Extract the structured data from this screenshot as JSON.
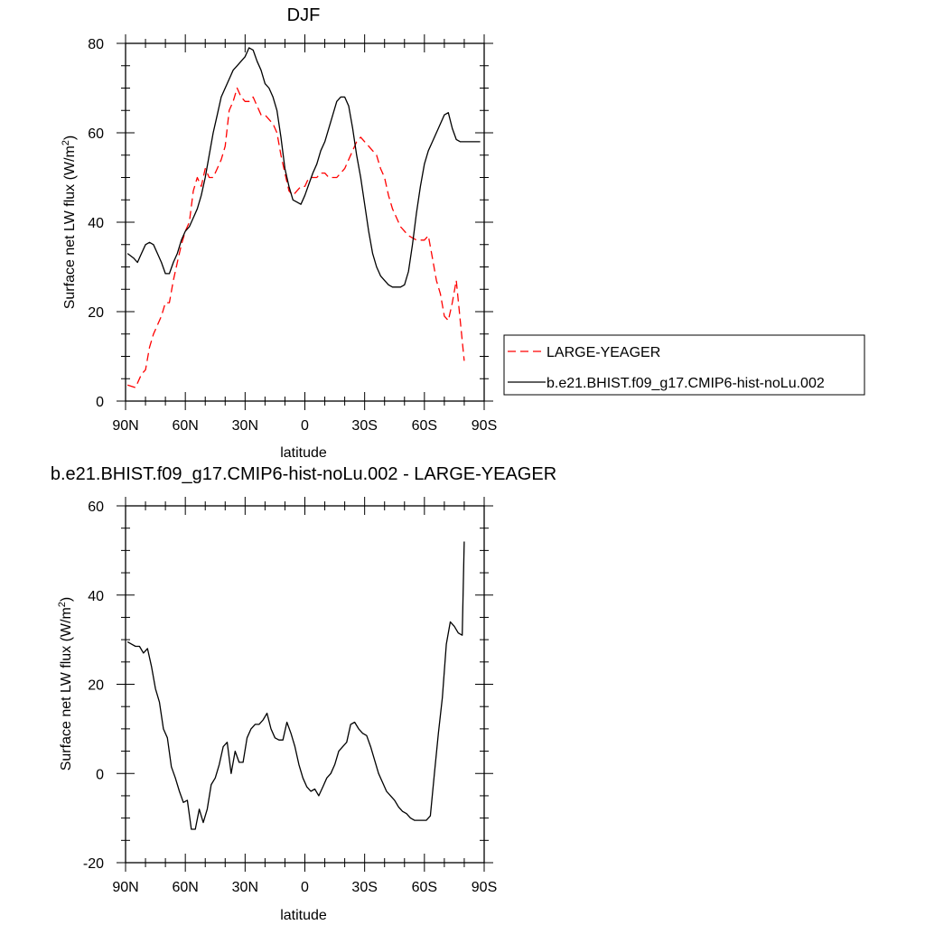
{
  "chart_data": [
    {
      "type": "line",
      "title": "DJF",
      "xlabel": "latitude",
      "ylabel": "Surface net LW flux (W/m",
      "ylabel_sup": "2",
      "ylabel_close": ")",
      "xlim": [
        90,
        -90
      ],
      "ylim": [
        0,
        80
      ],
      "xticks": [
        {
          "value": 90,
          "label": "90N"
        },
        {
          "value": 60,
          "label": "60N"
        },
        {
          "value": 30,
          "label": "30N"
        },
        {
          "value": 0,
          "label": "0"
        },
        {
          "value": -30,
          "label": "30S"
        },
        {
          "value": -60,
          "label": "60S"
        },
        {
          "value": -90,
          "label": "90S"
        }
      ],
      "yticks": [
        {
          "value": 0,
          "label": "0"
        },
        {
          "value": 20,
          "label": "20"
        },
        {
          "value": 40,
          "label": "40"
        },
        {
          "value": 60,
          "label": "60"
        },
        {
          "value": 80,
          "label": "80"
        }
      ],
      "legend": "right",
      "series": [
        {
          "name": "LARGE-YEAGER",
          "color": "#ff0000",
          "dash": "dashed",
          "x": [
            89,
            85,
            82,
            80,
            78,
            76,
            74,
            72,
            70,
            68,
            66,
            64,
            62,
            60,
            58,
            56,
            54,
            52,
            50,
            48,
            46,
            44,
            42,
            40,
            38,
            36,
            34,
            32,
            30,
            28,
            26,
            24,
            22,
            20,
            18,
            16,
            14,
            12,
            10,
            8,
            6,
            4,
            2,
            0,
            -2,
            -4,
            -6,
            -8,
            -10,
            -12,
            -14,
            -16,
            -18,
            -20,
            -22,
            -24,
            -26,
            -28,
            -30,
            -32,
            -34,
            -36,
            -38,
            -40,
            -42,
            -44,
            -46,
            -48,
            -50,
            -52,
            -54,
            -56,
            -58,
            -60,
            -62,
            -64,
            -66,
            -68,
            -70,
            -72,
            -74,
            -76,
            -78,
            -80
          ],
          "y": [
            3.6,
            3,
            6,
            7,
            12,
            15,
            17,
            19,
            22,
            22,
            27,
            31,
            35,
            38,
            40,
            47,
            50,
            48,
            52,
            50,
            50,
            52,
            54,
            57,
            65,
            67,
            70,
            68,
            67,
            67,
            68,
            66,
            64,
            64,
            63,
            62,
            60,
            55,
            51,
            47,
            46,
            47,
            48,
            48,
            50,
            50,
            50,
            51,
            51,
            50,
            50,
            50,
            51,
            52,
            54,
            56,
            58,
            59,
            58,
            57,
            56,
            55,
            52,
            50,
            46,
            43,
            41,
            39,
            38,
            37,
            36.5,
            36,
            36,
            36,
            37,
            32,
            27,
            24,
            19,
            18,
            22,
            27,
            18,
            9
          ]
        },
        {
          "name": "b.e21.BHIST.f09_g17.CMIP6-hist-noLu.002",
          "color": "#000000",
          "dash": "solid",
          "x": [
            89,
            86,
            84,
            82,
            80,
            78,
            76,
            74,
            72,
            70,
            68,
            66,
            64,
            62,
            60,
            58,
            56,
            54,
            52,
            50,
            48,
            46,
            44,
            42,
            40,
            38,
            36,
            34,
            32,
            30,
            28,
            26,
            24,
            22,
            20,
            18,
            16,
            14,
            12,
            10,
            8,
            6,
            4,
            2,
            0,
            -2,
            -4,
            -6,
            -8,
            -10,
            -12,
            -14,
            -16,
            -18,
            -20,
            -22,
            -24,
            -26,
            -28,
            -30,
            -32,
            -34,
            -36,
            -38,
            -40,
            -42,
            -44,
            -46,
            -48,
            -50,
            -52,
            -54,
            -56,
            -58,
            -60,
            -62,
            -64,
            -66,
            -68,
            -70,
            -72,
            -74,
            -76,
            -78,
            -80,
            -82,
            -84,
            -86,
            -88
          ],
          "y": [
            33,
            32,
            31,
            33,
            35,
            35.5,
            35,
            33,
            31,
            28.5,
            28.5,
            31,
            33,
            36,
            38,
            39,
            41,
            43,
            46,
            50,
            55,
            60,
            64,
            68,
            70,
            72,
            74,
            75,
            76,
            77,
            79,
            78.5,
            76,
            74,
            71,
            70,
            68,
            65,
            59,
            52,
            48,
            45,
            44.5,
            44,
            46,
            48.5,
            51,
            53,
            56,
            58,
            61,
            64,
            67,
            68,
            68,
            66,
            61,
            55,
            50,
            44,
            38,
            33,
            30,
            28,
            27,
            26,
            25.5,
            25.5,
            25.5,
            26,
            29,
            35,
            42,
            48,
            53,
            56,
            58,
            60,
            62,
            64,
            64.5,
            61,
            58.5,
            58,
            58,
            58,
            58,
            58,
            58
          ]
        }
      ]
    },
    {
      "type": "line",
      "title": "b.e21.BHIST.f09_g17.CMIP6-hist-noLu.002 - LARGE-YEAGER",
      "xlabel": "latitude",
      "ylabel": "Surface net LW flux (W/m",
      "ylabel_sup": "2",
      "ylabel_close": ")",
      "xlim": [
        90,
        -90
      ],
      "ylim": [
        -20,
        60
      ],
      "xticks": [
        {
          "value": 90,
          "label": "90N"
        },
        {
          "value": 60,
          "label": "60N"
        },
        {
          "value": 30,
          "label": "30N"
        },
        {
          "value": 0,
          "label": "0"
        },
        {
          "value": -30,
          "label": "30S"
        },
        {
          "value": -60,
          "label": "60S"
        },
        {
          "value": -90,
          "label": "90S"
        }
      ],
      "yticks": [
        {
          "value": -20,
          "label": "-20"
        },
        {
          "value": 0,
          "label": "0"
        },
        {
          "value": 20,
          "label": "20"
        },
        {
          "value": 40,
          "label": "40"
        },
        {
          "value": 60,
          "label": "60"
        }
      ],
      "series": [
        {
          "name": "",
          "color": "#000000",
          "dash": "solid",
          "x": [
            89,
            87,
            85,
            83,
            81,
            79,
            77,
            75,
            73,
            71,
            69,
            67,
            65,
            63,
            61,
            59,
            57,
            55,
            53,
            51,
            49,
            47,
            45,
            43,
            41,
            39,
            37,
            35,
            33,
            31,
            29,
            27,
            25,
            23,
            21,
            19,
            17,
            15,
            13,
            11,
            9,
            7,
            5,
            3,
            1,
            -1,
            -3,
            -5,
            -7,
            -9,
            -11,
            -13,
            -15,
            -17,
            -19,
            -21,
            -23,
            -25,
            -27,
            -29,
            -31,
            -33,
            -35,
            -37,
            -39,
            -41,
            -43,
            -45,
            -47,
            -49,
            -51,
            -53,
            -55,
            -57,
            -59,
            -61,
            -63,
            -65,
            -67,
            -69,
            -71,
            -73,
            -75,
            -77,
            -79,
            -80
          ],
          "y": [
            29.5,
            29,
            28.5,
            28.5,
            27,
            28,
            24,
            19,
            16,
            10,
            8,
            1.5,
            -1,
            -4,
            -6.5,
            -6,
            -12.5,
            -12.5,
            -8,
            -11,
            -8,
            -2.5,
            -1,
            2,
            6,
            7,
            0,
            5,
            2.5,
            2.5,
            8,
            10,
            11,
            11,
            12,
            13.5,
            10,
            8,
            7.5,
            7.5,
            11.5,
            9,
            6,
            2,
            -1,
            -3,
            -4,
            -3.5,
            -5,
            -3,
            -1,
            0,
            2,
            5,
            6,
            7,
            11,
            11.5,
            10,
            9,
            8.5,
            6,
            3,
            0,
            -2,
            -4,
            -5,
            -6,
            -7.5,
            -8.5,
            -9,
            -10,
            -10.5,
            -10.5,
            -10.5,
            -10.5,
            -9.5,
            0,
            9,
            17,
            29,
            34,
            33,
            31.5,
            31,
            52
          ]
        }
      ]
    }
  ]
}
